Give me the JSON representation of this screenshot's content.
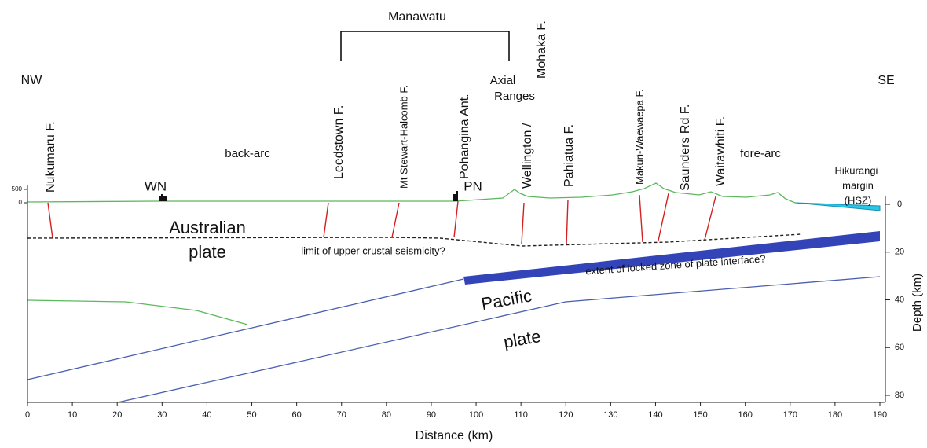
{
  "header": {
    "region": "Manawatu",
    "left_end": "NW",
    "right_end": "SE",
    "axial_1": "Axial",
    "axial_2": "Ranges"
  },
  "faults": [
    "Nukumaru F.",
    "Leedstown F.",
    "Mt Stewart-Halcomb F.",
    "Pohangina Ant.",
    "Mohaka F.",
    "Wellington /",
    "Pahiatua F.",
    "Makuri-Waewaepa F.",
    "Saunders Rd F.",
    "Waitawhiti F."
  ],
  "zones": {
    "back_arc": "back-arc",
    "fore_arc": "fore-arc",
    "margin_1": "Hikurangi",
    "margin_2": "margin",
    "margin_3": "(HSZ)"
  },
  "towns": {
    "wn": "WN",
    "pn": "PN"
  },
  "plates": {
    "australian_1": "Australian",
    "australian_2": "plate",
    "pacific_1": "Pacific",
    "pacific_2": "plate"
  },
  "notes": {
    "seismicity": "limit of upper crustal seismicity?",
    "locked": "extent of locked zone of plate interface?"
  },
  "x_axis": {
    "title": "Distance (km)",
    "ticks": [
      0,
      10,
      20,
      30,
      40,
      50,
      60,
      70,
      80,
      90,
      100,
      110,
      120,
      130,
      140,
      150,
      160,
      170,
      180,
      190
    ]
  },
  "y_axis": {
    "title": "Depth (km)",
    "ticks": [
      0,
      20,
      40,
      60,
      80
    ]
  },
  "elevation_axis": {
    "ticks": [
      500,
      0
    ]
  }
}
